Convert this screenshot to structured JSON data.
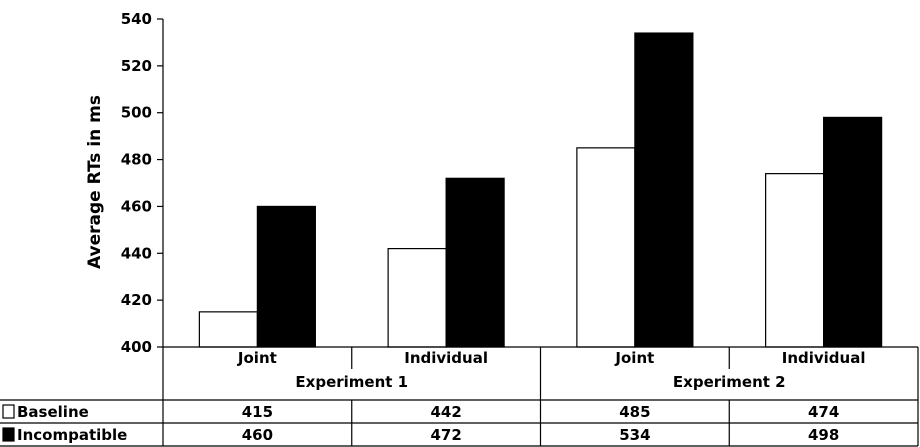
{
  "chart_data": {
    "type": "bar",
    "ylabel": "Average RTs in ms",
    "ylim": [
      400,
      540
    ],
    "yticks": [
      400,
      420,
      440,
      460,
      480,
      500,
      520,
      540
    ],
    "groups": [
      "Experiment 1",
      "Experiment 2"
    ],
    "categories": [
      "Joint",
      "Individual",
      "Joint",
      "Individual"
    ],
    "series": [
      {
        "name": "Baseline",
        "fill": "#ffffff",
        "values": [
          415,
          442,
          485,
          474
        ]
      },
      {
        "name": "Incompatible",
        "fill": "#000000",
        "values": [
          460,
          472,
          534,
          498
        ]
      }
    ],
    "grid": false,
    "legend": "data table (left of rows)"
  }
}
